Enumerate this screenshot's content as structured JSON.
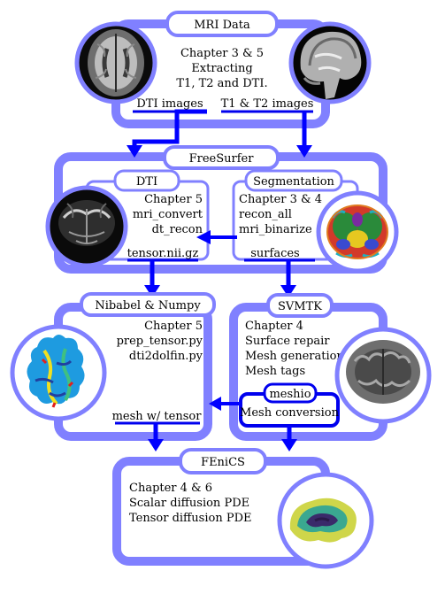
{
  "mri": {
    "title": "MRI Data",
    "lines": [
      "Chapter 3 & 5",
      "Extracting",
      "T1, T2 and DTI."
    ],
    "dti_images": "DTI images",
    "t1t2_images": "T1 & T2 images"
  },
  "freesurfer": {
    "title": "FreeSurfer",
    "dti": {
      "title": "DTI",
      "lines": [
        "Chapter 5",
        "mri_convert",
        "dt_recon"
      ],
      "output": "tensor.nii.gz"
    },
    "segmentation": {
      "title": "Segmentation",
      "lines": [
        "Chapter 3 & 4",
        "recon_all",
        "mri_binarize"
      ],
      "output": "surfaces"
    }
  },
  "nibabel": {
    "title": "Nibabel & Numpy",
    "lines": [
      "Chapter 5",
      "prep_tensor.py",
      "dti2dolfin.py"
    ],
    "output": "mesh w/ tensor"
  },
  "svmtk": {
    "title": "SVMTK",
    "lines": [
      "Chapter 4",
      "Surface repair",
      "Mesh generation",
      "Mesh tags"
    ],
    "meshio_title": "meshio",
    "meshio_text": "Mesh conversion"
  },
  "fenics": {
    "title": "FEniCS",
    "lines": [
      "Chapter 4 & 6",
      "Scalar diffusion PDE",
      "Tensor diffusion PDE"
    ]
  },
  "colors": {
    "frame": "#8080ff",
    "arrow": "#0000ff",
    "underline": "#0000ee"
  }
}
